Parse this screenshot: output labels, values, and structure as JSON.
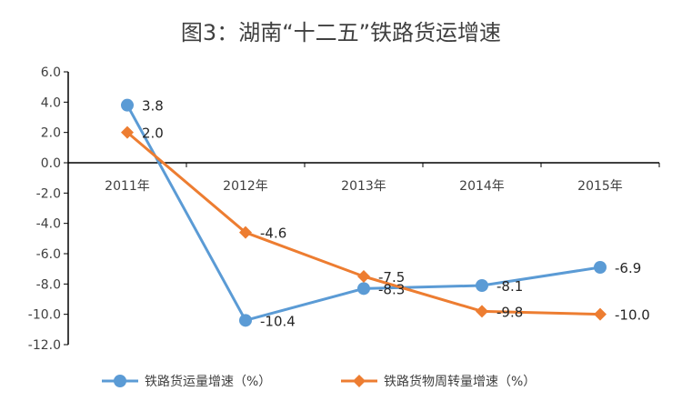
{
  "chart_data": {
    "type": "line",
    "title": "图3：湖南“十二五”铁路货运增速",
    "categories": [
      "2011年",
      "2012年",
      "2013年",
      "2014年",
      "2015年"
    ],
    "y_ticks": [
      "6.0",
      "4.0",
      "2.0",
      "0.0",
      "-2.0",
      "-4.0",
      "-6.0",
      "-8.0",
      "-10.0",
      "-12.0"
    ],
    "ylim": [
      -12,
      6
    ],
    "grid": false,
    "legend_position": "bottom",
    "series": [
      {
        "name": "铁路货运量增速（%）",
        "values": [
          3.8,
          -10.4,
          -8.3,
          -8.1,
          -6.9
        ],
        "labels": [
          "3.8",
          "-10.4",
          "-8.3",
          "-8.1",
          "-6.9"
        ],
        "color": "#5B9BD5",
        "marker": "circle"
      },
      {
        "name": "铁路货物周转量增速（%）",
        "values": [
          2.0,
          -4.6,
          -7.5,
          -9.8,
          -10.0
        ],
        "labels": [
          "2.0",
          "-4.6",
          "-7.5",
          "-9.8",
          "-10.0"
        ],
        "color": "#ED7D31",
        "marker": "diamond"
      }
    ]
  }
}
